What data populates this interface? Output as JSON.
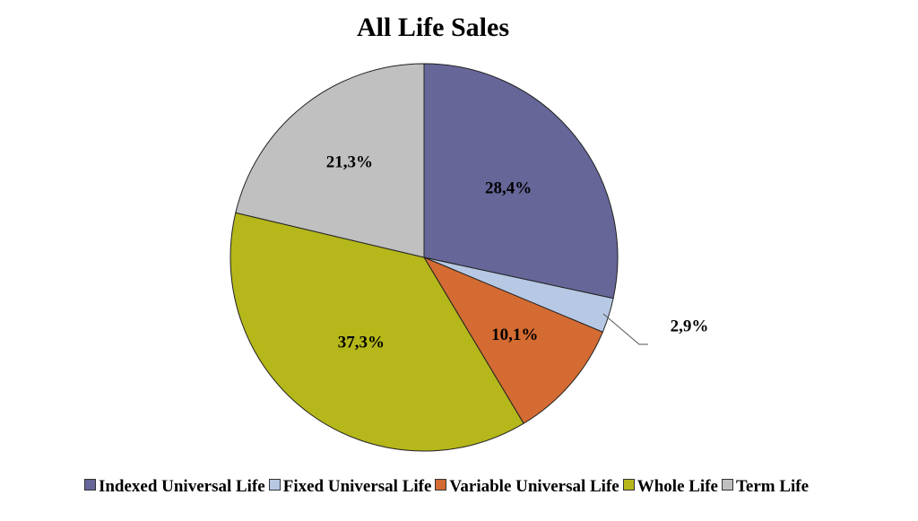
{
  "chart_data": {
    "type": "pie",
    "title": "All Life Sales",
    "categories": [
      "Indexed Universal Life",
      "Fixed Universal Life",
      "Variable Universal Life",
      "Whole Life",
      "Term Life"
    ],
    "values": [
      28.4,
      2.9,
      10.1,
      37.3,
      21.3
    ],
    "labels": [
      "28,4%",
      "2,9%",
      "10,1%",
      "37,3%",
      "21,3%"
    ],
    "colors": [
      "#666699",
      "#b6c8e4",
      "#d46b32",
      "#b5b71a",
      "#c0c0c0"
    ],
    "start_angle_deg": 0,
    "direction": "clockwise",
    "legend_position": "bottom"
  }
}
